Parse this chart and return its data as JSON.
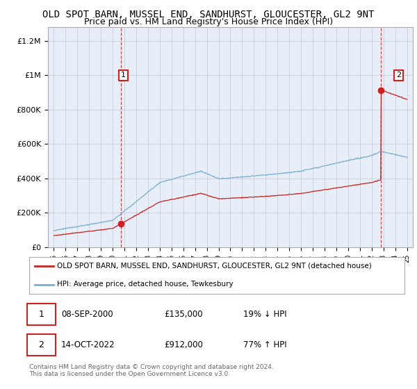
{
  "title": "OLD SPOT BARN, MUSSEL END, SANDHURST, GLOUCESTER, GL2 9NT",
  "subtitle": "Price paid vs. HM Land Registry's House Price Index (HPI)",
  "title_fontsize": 10,
  "subtitle_fontsize": 9,
  "ylabel_ticks": [
    "£0",
    "£200K",
    "£400K",
    "£600K",
    "£800K",
    "£1M",
    "£1.2M"
  ],
  "ytick_values": [
    0,
    200000,
    400000,
    600000,
    800000,
    1000000,
    1200000
  ],
  "ylim": [
    0,
    1280000
  ],
  "xlim_start": 1994.5,
  "xlim_end": 2025.5,
  "hpi_color": "#7bafd4",
  "price_color": "#cc2222",
  "chart_bg": "#e8eef8",
  "sale1_year": 2000.7,
  "sale1_price": 135000,
  "sale2_year": 2022.8,
  "sale2_price": 912000,
  "annotation1_label": "1",
  "annotation2_label": "2",
  "legend_label1": "OLD SPOT BARN, MUSSEL END, SANDHURST, GLOUCESTER, GL2 9NT (detached house)",
  "legend_label2": "HPI: Average price, detached house, Tewkesbury",
  "table_row1": [
    "1",
    "08-SEP-2000",
    "£135,000",
    "19% ↓ HPI"
  ],
  "table_row2": [
    "2",
    "14-OCT-2022",
    "£912,000",
    "77% ↑ HPI"
  ],
  "footer": "Contains HM Land Registry data © Crown copyright and database right 2024.\nThis data is licensed under the Open Government Licence v3.0.",
  "bg_color": "#ffffff",
  "grid_color": "#c0c8d8"
}
